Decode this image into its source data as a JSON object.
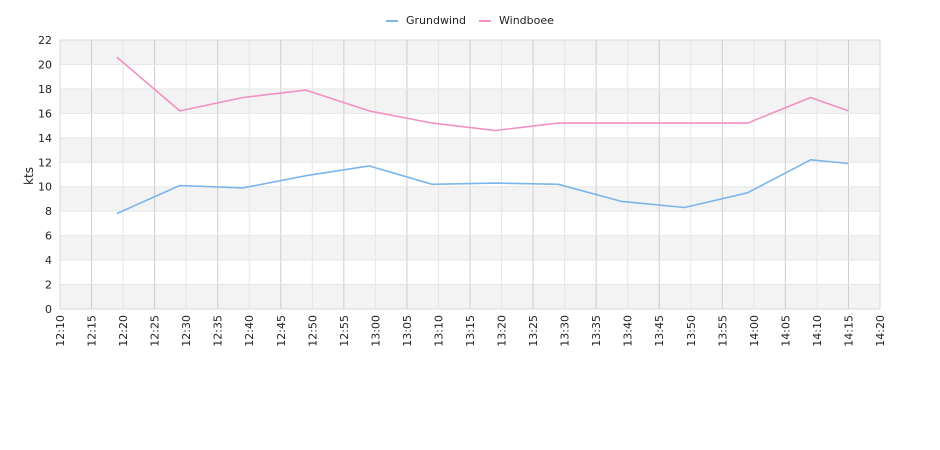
{
  "chart_data": {
    "type": "line",
    "title": "",
    "xlabel": "",
    "ylabel": "kts",
    "ylim": [
      0,
      22
    ],
    "y_ticks": [
      0,
      2,
      4,
      6,
      8,
      10,
      12,
      14,
      16,
      18,
      20,
      22
    ],
    "x_ticks": [
      "12:10",
      "12:15",
      "12:20",
      "12:25",
      "12:30",
      "12:35",
      "12:40",
      "12:45",
      "12:50",
      "12:55",
      "13:00",
      "13:05",
      "13:10",
      "13:15",
      "13:20",
      "13:25",
      "13:30",
      "13:35",
      "13:40",
      "13:45",
      "13:50",
      "13:55",
      "14:00",
      "14:05",
      "14:10",
      "14:15",
      "14:20"
    ],
    "xlim": [
      "12:10",
      "14:20"
    ],
    "grid": true,
    "legend_position": "top-center",
    "series": [
      {
        "name": "Grundwind",
        "color": "#7cb5ec",
        "points": [
          {
            "x": "12:19",
            "y": 7.8
          },
          {
            "x": "12:29",
            "y": 10.1
          },
          {
            "x": "12:39",
            "y": 9.9
          },
          {
            "x": "12:49",
            "y": 10.9
          },
          {
            "x": "12:59",
            "y": 11.7
          },
          {
            "x": "13:09",
            "y": 10.2
          },
          {
            "x": "13:19",
            "y": 10.3
          },
          {
            "x": "13:29",
            "y": 10.2
          },
          {
            "x": "13:39",
            "y": 8.8
          },
          {
            "x": "13:49",
            "y": 8.3
          },
          {
            "x": "13:59",
            "y": 9.5
          },
          {
            "x": "14:09",
            "y": 12.2
          },
          {
            "x": "14:15",
            "y": 11.9
          }
        ]
      },
      {
        "name": "Windboee",
        "color": "#f191c3",
        "points": [
          {
            "x": "12:19",
            "y": 20.6
          },
          {
            "x": "12:29",
            "y": 16.2
          },
          {
            "x": "12:39",
            "y": 17.3
          },
          {
            "x": "12:49",
            "y": 17.9
          },
          {
            "x": "12:59",
            "y": 16.2
          },
          {
            "x": "13:09",
            "y": 15.2
          },
          {
            "x": "13:19",
            "y": 14.6
          },
          {
            "x": "13:29",
            "y": 15.2
          },
          {
            "x": "13:39",
            "y": 15.2
          },
          {
            "x": "13:49",
            "y": 15.2
          },
          {
            "x": "13:59",
            "y": 15.2
          },
          {
            "x": "14:09",
            "y": 17.3
          },
          {
            "x": "14:15",
            "y": 16.2
          }
        ]
      }
    ]
  }
}
